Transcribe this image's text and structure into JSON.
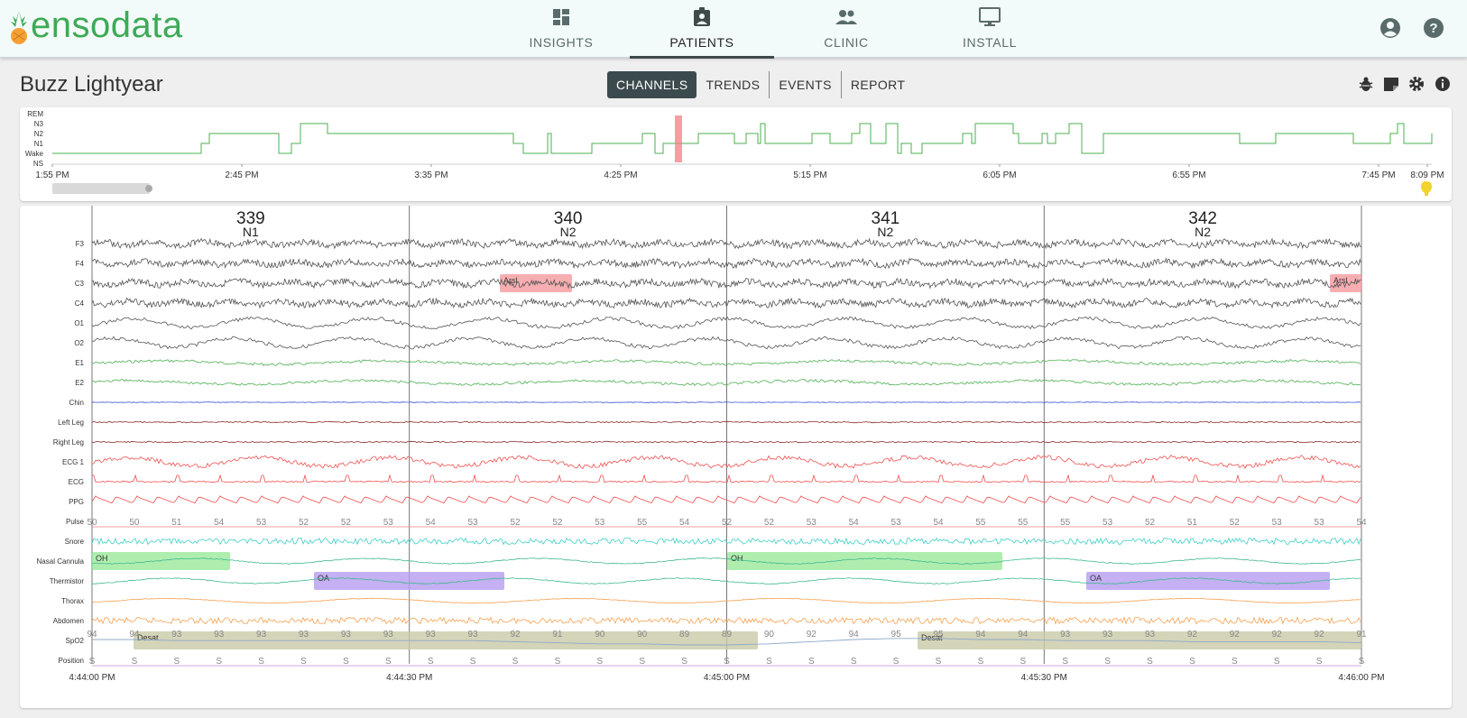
{
  "app": {
    "logo_text": "ensodata"
  },
  "nav": {
    "items": [
      {
        "label": "INSIGHTS",
        "icon": "dashboard-icon"
      },
      {
        "label": "PATIENTS",
        "icon": "patient-badge-icon",
        "active": true
      },
      {
        "label": "CLINIC",
        "icon": "people-icon"
      },
      {
        "label": "INSTALL",
        "icon": "monitor-icon"
      }
    ],
    "right_icons": [
      "account-circle-icon",
      "help-icon"
    ]
  },
  "page": {
    "patient_name": "Buzz Lightyear"
  },
  "tabs": [
    "CHANNELS",
    "TRENDS",
    "EVENTS",
    "REPORT"
  ],
  "active_tab": "CHANNELS",
  "toolbar_icons": [
    "bug-icon",
    "note-icon",
    "gear-icon",
    "info-icon"
  ],
  "colors": {
    "accent": "#3daa55",
    "active_tab": "#3b4a4d",
    "hypnogram_line": "#4caf50",
    "hypnogram_marker": "#f27f86"
  },
  "hypnogram": {
    "stages": [
      "REM",
      "N3",
      "N2",
      "N1",
      "Wake",
      "NS"
    ],
    "time_labels": [
      "1:55 PM",
      "2:45 PM",
      "3:35 PM",
      "4:25 PM",
      "5:15 PM",
      "6:05 PM",
      "6:55 PM",
      "7:45 PM",
      "8:09 PM"
    ],
    "current_window": "4:44 PM"
  },
  "epochs": [
    {
      "number": "339",
      "stage": "N1"
    },
    {
      "number": "340",
      "stage": "N2"
    },
    {
      "number": "341",
      "stage": "N2"
    },
    {
      "number": "342",
      "stage": "N2"
    }
  ],
  "channels": [
    {
      "label": "F3",
      "color": "#555555"
    },
    {
      "label": "F4",
      "color": "#555555"
    },
    {
      "label": "C3",
      "color": "#555555"
    },
    {
      "label": "C4",
      "color": "#555555"
    },
    {
      "label": "O1",
      "color": "#555555"
    },
    {
      "label": "O2",
      "color": "#555555"
    },
    {
      "label": "E1",
      "color": "#4caf50"
    },
    {
      "label": "E2",
      "color": "#4caf50"
    },
    {
      "label": "Chin",
      "color": "#3f51d8"
    },
    {
      "label": "Left Leg",
      "color": "#8b2a2a"
    },
    {
      "label": "Right Leg",
      "color": "#8b2a2a"
    },
    {
      "label": "ECG 1",
      "color": "#f05050"
    },
    {
      "label": "ECG",
      "color": "#f05050"
    },
    {
      "label": "PPG",
      "color": "#f05050"
    },
    {
      "label": "Pulse",
      "color": "#f05050"
    },
    {
      "label": "Snore",
      "color": "#3fd0c8"
    },
    {
      "label": "Nasal Cannula",
      "color": "#3fb98f"
    },
    {
      "label": "Thermistor",
      "color": "#3fb98f"
    },
    {
      "label": "Thorax",
      "color": "#f5a050"
    },
    {
      "label": "Abdomen",
      "color": "#f5a050"
    },
    {
      "label": "SpO2",
      "color": "#8fa9c9"
    },
    {
      "label": "Position",
      "color": "#c58ad8"
    }
  ],
  "pulse_values": [
    "50",
    "50",
    "51",
    "54",
    "53",
    "52",
    "52",
    "53",
    "54",
    "53",
    "52",
    "52",
    "53",
    "55",
    "54",
    "52",
    "52",
    "53",
    "54",
    "53",
    "54",
    "55",
    "55",
    "55",
    "53",
    "52",
    "51",
    "52",
    "53",
    "53",
    "54"
  ],
  "spo2_values": [
    "94",
    "94",
    "93",
    "93",
    "93",
    "93",
    "93",
    "93",
    "93",
    "93",
    "92",
    "91",
    "90",
    "90",
    "89",
    "89",
    "90",
    "92",
    "94",
    "95",
    "95",
    "94",
    "94",
    "93",
    "93",
    "93",
    "92",
    "92",
    "92",
    "92",
    "91"
  ],
  "position_value": "S",
  "events": [
    {
      "channel": "C3",
      "label": "Arsl",
      "color": "#f59a9e"
    },
    {
      "channel": "C3",
      "label": "Arsl",
      "color": "#f59a9e"
    },
    {
      "channel": "Nasal Cannula",
      "label": "OH",
      "color": "#9be89b"
    },
    {
      "channel": "Nasal Cannula",
      "label": "OH",
      "color": "#9be89b"
    },
    {
      "channel": "Thermistor",
      "label": "OA",
      "color": "#b59cf0"
    },
    {
      "channel": "Thermistor",
      "label": "OA",
      "color": "#b59cf0"
    },
    {
      "channel": "SpO2",
      "label": "Desat",
      "color": "#c9c9a8"
    },
    {
      "channel": "SpO2",
      "label": "Desat",
      "color": "#c9c9a8"
    }
  ],
  "time_axis": [
    "4:44:00 PM",
    "4:44:30 PM",
    "4:45:00 PM",
    "4:45:30 PM",
    "4:46:00 PM"
  ]
}
